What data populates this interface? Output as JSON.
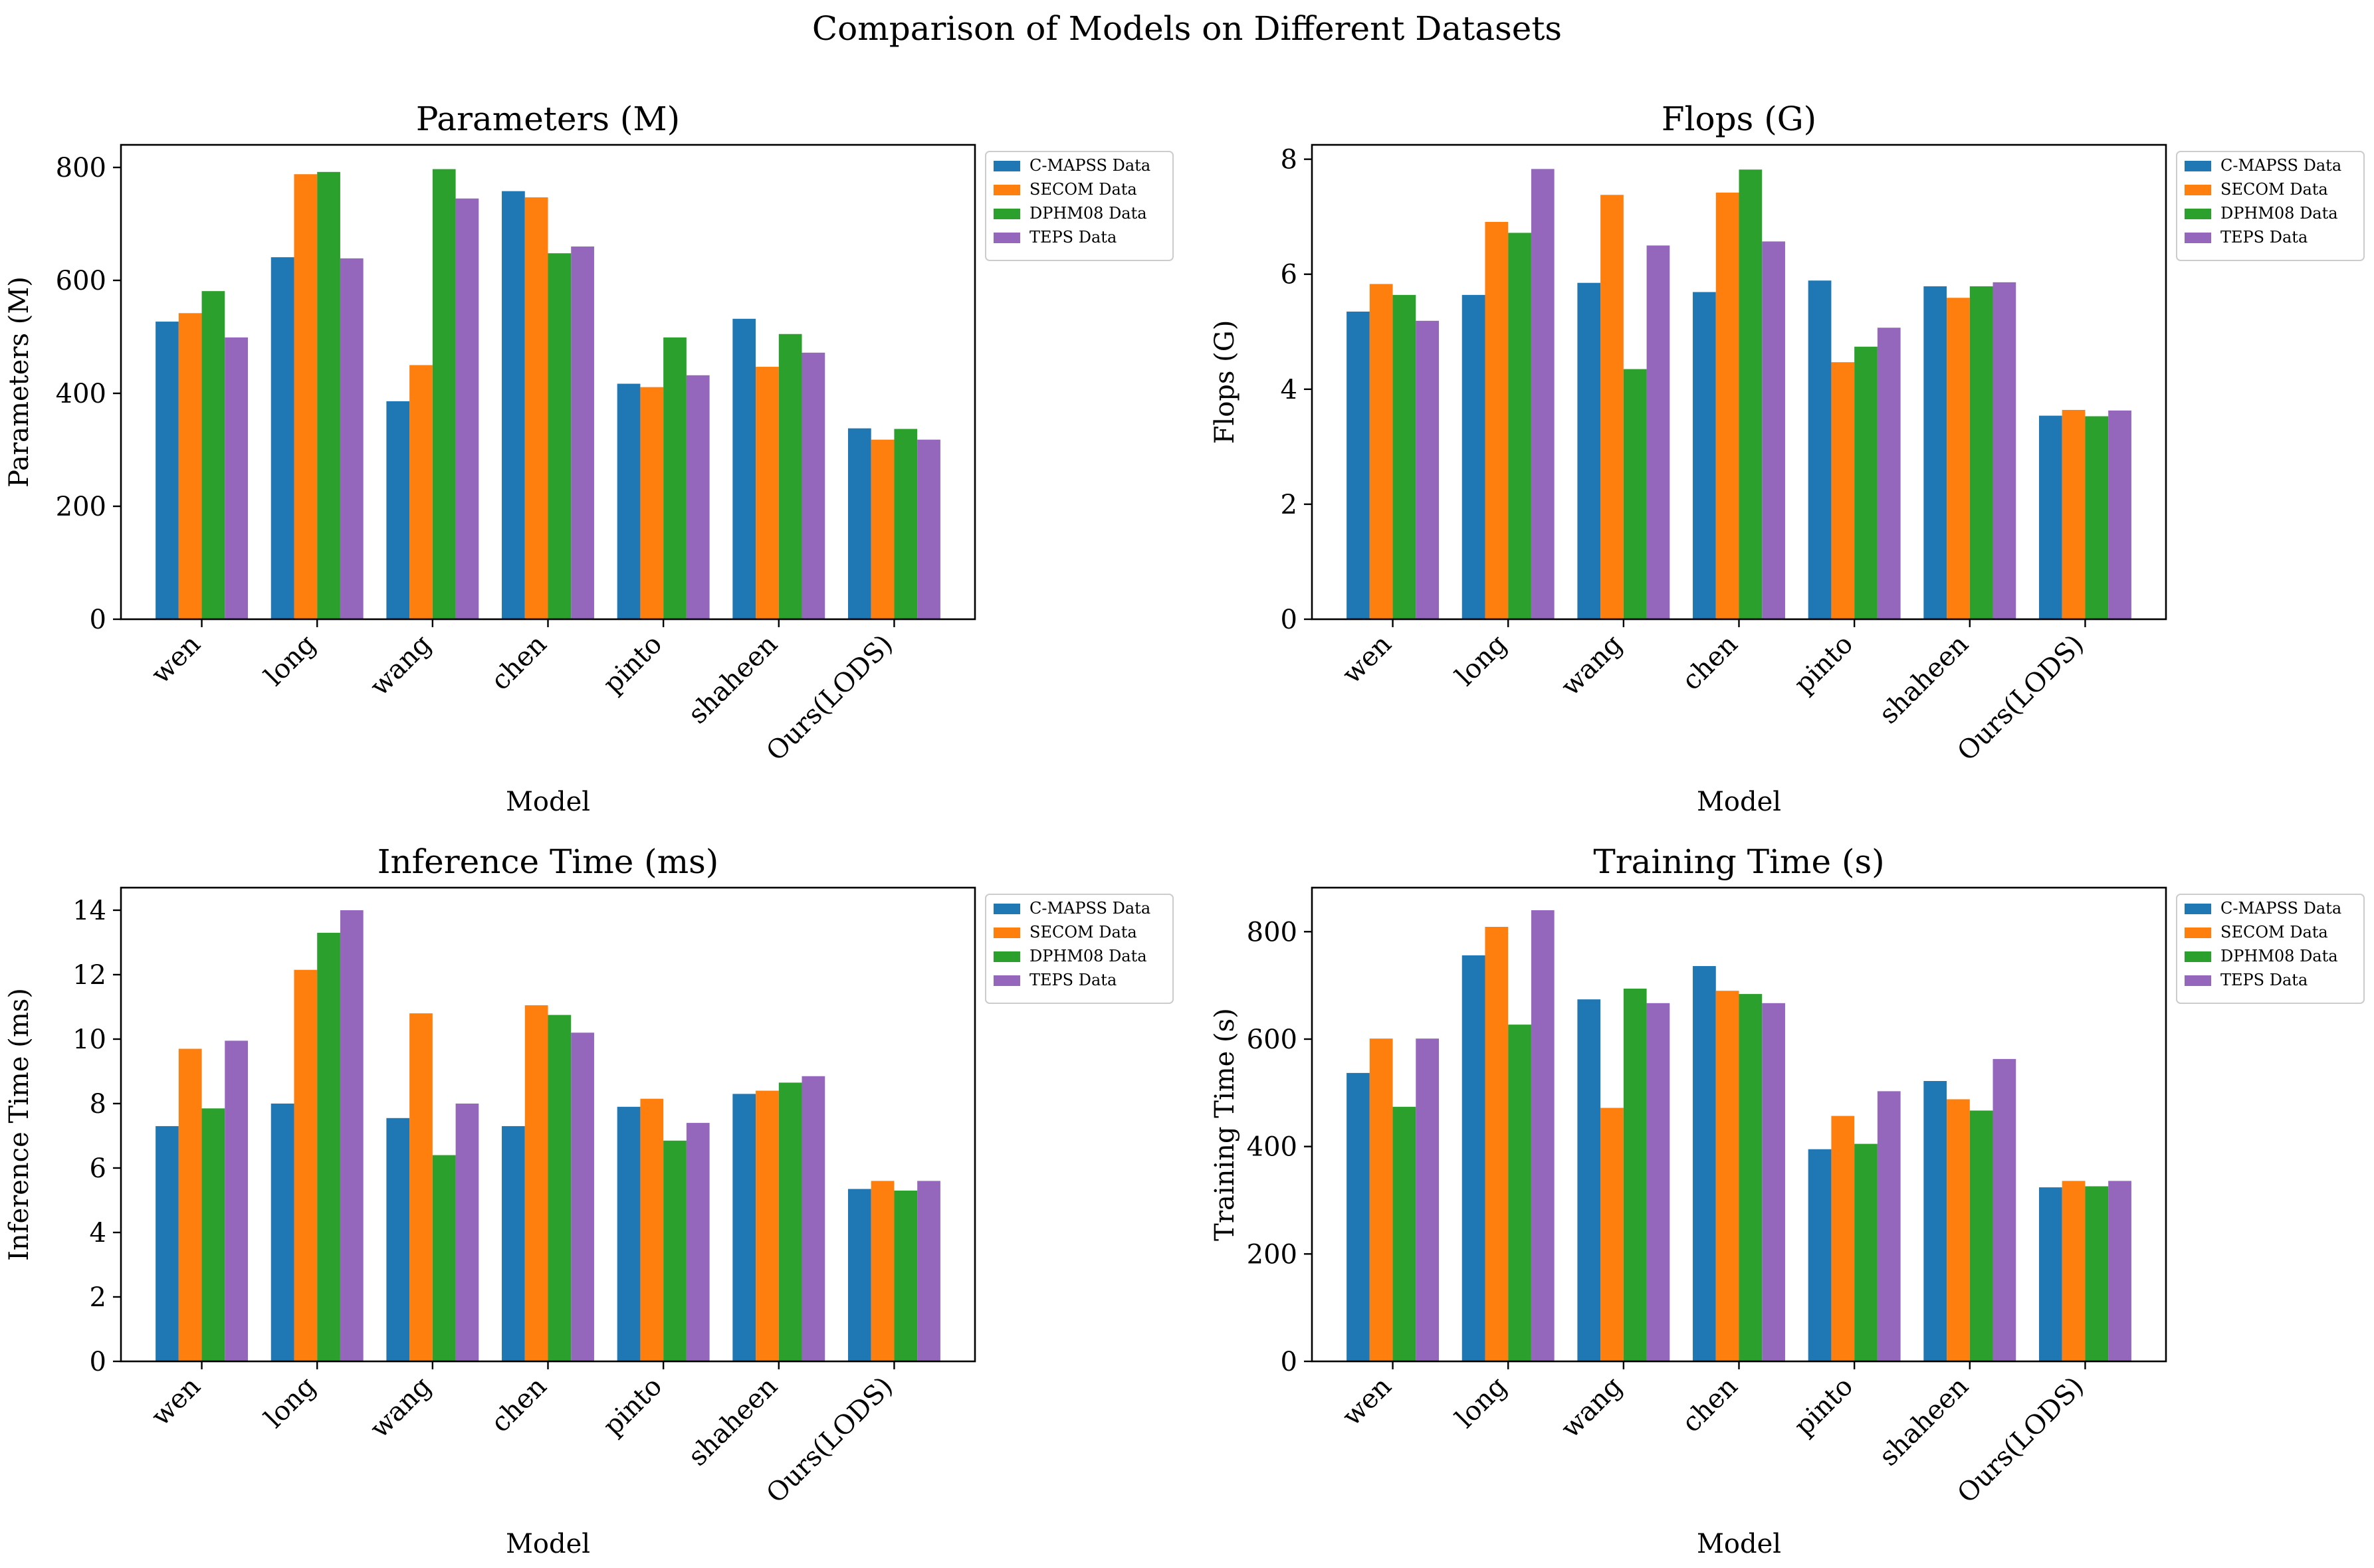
{
  "figure_title": "Comparison of Models on Different Datasets",
  "colors": {
    "C-MAPSS Data": "#1f77b4",
    "SECOM Data": "#ff7f0e",
    "DPHM08 Data": "#2ca02c",
    "TEPS Data": "#9467bd"
  },
  "chart_data": [
    {
      "type": "bar",
      "title": "Parameters (M)",
      "xlabel": "Model",
      "ylabel": "Parameters (M)",
      "ylim": [
        0,
        840
      ],
      "yticks": [
        0,
        200,
        400,
        600,
        800
      ],
      "categories": [
        "wen",
        "long",
        "wang",
        "chen",
        "pinto",
        "shaheen",
        "Ours(LODS)"
      ],
      "legend_position": "outside-right-top",
      "series": [
        {
          "name": "C-MAPSS Data",
          "values": [
            527,
            641,
            386,
            758,
            417,
            532,
            338
          ]
        },
        {
          "name": "SECOM Data",
          "values": [
            542,
            788,
            450,
            747,
            411,
            447,
            318
          ]
        },
        {
          "name": "DPHM08 Data",
          "values": [
            581,
            792,
            797,
            648,
            499,
            505,
            337
          ]
        },
        {
          "name": "TEPS Data",
          "values": [
            499,
            639,
            745,
            660,
            432,
            472,
            318
          ]
        }
      ]
    },
    {
      "type": "bar",
      "title": "Flops (G)",
      "xlabel": "Model",
      "ylabel": "Flops (G)",
      "ylim": [
        0,
        8.25
      ],
      "yticks": [
        0,
        2,
        4,
        6,
        8
      ],
      "categories": [
        "wen",
        "long",
        "wang",
        "chen",
        "pinto",
        "shaheen",
        "Ours(LODS)"
      ],
      "legend_position": "outside-right-top",
      "series": [
        {
          "name": "C-MAPSS Data",
          "values": [
            5.35,
            5.64,
            5.85,
            5.69,
            5.89,
            5.79,
            3.54
          ]
        },
        {
          "name": "SECOM Data",
          "values": [
            5.83,
            6.91,
            7.38,
            7.42,
            4.47,
            5.59,
            3.64
          ]
        },
        {
          "name": "DPHM08 Data",
          "values": [
            5.64,
            6.72,
            4.35,
            7.82,
            4.74,
            5.79,
            3.53
          ]
        },
        {
          "name": "TEPS Data",
          "values": [
            5.19,
            7.83,
            6.5,
            6.57,
            5.07,
            5.86,
            3.63
          ]
        }
      ]
    },
    {
      "type": "bar",
      "title": "Inference Time (ms)",
      "xlabel": "Model",
      "ylabel": "Inference Time (ms)",
      "ylim": [
        0,
        14.7
      ],
      "yticks": [
        0,
        2,
        4,
        6,
        8,
        10,
        12,
        14
      ],
      "categories": [
        "wen",
        "long",
        "wang",
        "chen",
        "pinto",
        "shaheen",
        "Ours(LODS)"
      ],
      "legend_position": "outside-right-top",
      "series": [
        {
          "name": "C-MAPSS Data",
          "values": [
            7.3,
            8.0,
            7.55,
            7.3,
            7.9,
            8.3,
            5.35
          ]
        },
        {
          "name": "SECOM Data",
          "values": [
            9.7,
            12.15,
            10.8,
            11.05,
            8.15,
            8.4,
            5.6
          ]
        },
        {
          "name": "DPHM08 Data",
          "values": [
            7.85,
            13.3,
            6.4,
            10.75,
            6.85,
            8.65,
            5.3
          ]
        },
        {
          "name": "TEPS Data",
          "values": [
            9.95,
            14.0,
            8.0,
            10.2,
            7.4,
            8.85,
            5.6
          ]
        }
      ]
    },
    {
      "type": "bar",
      "title": "Training Time (s)",
      "xlabel": "Model",
      "ylabel": "Training Time (s)",
      "ylim": [
        0,
        882
      ],
      "yticks": [
        0,
        200,
        400,
        600,
        800
      ],
      "categories": [
        "wen",
        "long",
        "wang",
        "chen",
        "pinto",
        "shaheen",
        "Ours(LODS)"
      ],
      "legend_position": "outside-right-top",
      "series": [
        {
          "name": "C-MAPSS Data",
          "values": [
            537,
            756,
            674,
            736,
            395,
            522,
            324
          ]
        },
        {
          "name": "SECOM Data",
          "values": [
            601,
            809,
            472,
            690,
            457,
            488,
            336
          ]
        },
        {
          "name": "DPHM08 Data",
          "values": [
            474,
            627,
            694,
            684,
            405,
            467,
            326
          ]
        },
        {
          "name": "TEPS Data",
          "values": [
            601,
            840,
            667,
            667,
            503,
            563,
            336
          ]
        }
      ]
    }
  ]
}
